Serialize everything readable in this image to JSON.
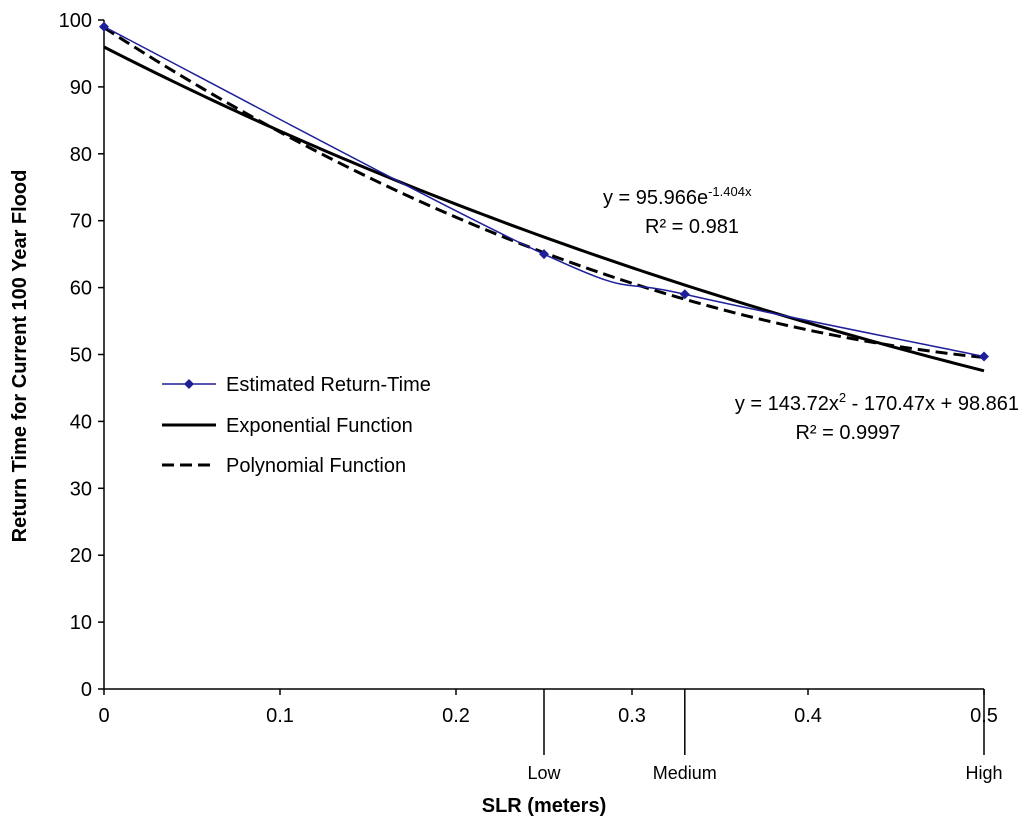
{
  "chart_data": {
    "type": "line",
    "title": "",
    "xlabel": "SLR (meters)",
    "ylabel": "Return Time for Current 100 Year Flood",
    "xlim": [
      0,
      0.5
    ],
    "ylim": [
      0,
      100
    ],
    "x_ticks": [
      0,
      0.1,
      0.2,
      0.3,
      0.4,
      0.5
    ],
    "x_tick_labels": [
      "0",
      "0.1",
      "0.2",
      "0.3",
      "0.4",
      "0.5"
    ],
    "y_ticks": [
      0,
      10,
      20,
      30,
      40,
      50,
      60,
      70,
      80,
      90,
      100
    ],
    "y_tick_labels": [
      "0",
      "10",
      "20",
      "30",
      "40",
      "50",
      "60",
      "70",
      "80",
      "90",
      "100"
    ],
    "grid": false,
    "scenario_markers": [
      {
        "x": 0.25,
        "label": "Low"
      },
      {
        "x": 0.33,
        "label": "Medium"
      },
      {
        "x": 0.5,
        "label": "High"
      }
    ],
    "series": [
      {
        "name": "Estimated Return-Time",
        "style": "line-with-diamond-markers",
        "color": "#1f1f99",
        "x": [
          0,
          0.25,
          0.33,
          0.5
        ],
        "y": [
          99,
          65,
          59,
          49.7
        ]
      },
      {
        "name": "Exponential Function",
        "style": "solid",
        "color": "#000000",
        "equation": {
          "a": 95.966,
          "b": -1.404,
          "form": "a*exp(b*x)"
        },
        "x_range": [
          0,
          0.5
        ]
      },
      {
        "name": "Polynomial Function",
        "style": "dashed",
        "color": "#000000",
        "equation": {
          "c2": 143.72,
          "c1": -170.47,
          "c0": 98.861,
          "form": "c2*x^2 + c1*x + c0"
        },
        "x_range": [
          0,
          0.5
        ]
      }
    ],
    "legend": {
      "position": "left-middle",
      "entries": [
        "Estimated Return-Time",
        "Exponential Function",
        "Polynomial Function"
      ]
    },
    "annotations": {
      "exp_eq_main": "y = 95.966e",
      "exp_eq_exponent": "-1.404x",
      "exp_r2": "R² = 0.981",
      "poly_eq_prefix": "y = 143.72x",
      "poly_eq_power": "2",
      "poly_eq_suffix": " - 170.47x + 98.861",
      "poly_r2": "R² = 0.9997"
    }
  }
}
